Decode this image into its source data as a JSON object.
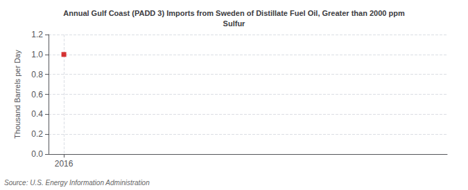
{
  "chart_data": {
    "type": "scatter",
    "title": "Annual Gulf Coast (PADD 3) Imports from Sweden of Distillate Fuel Oil, Greater than 2000 ppm\nSulfur",
    "ylabel": "Thousand Barrels per Day",
    "source": "Source: U.S. Energy Information Administration",
    "x": [
      2016
    ],
    "values": [
      1.0
    ],
    "color": "#cc0000",
    "marker": "square",
    "xlim": [
      2015.4,
      2031
    ],
    "xticks": [
      2016
    ],
    "ylim": [
      0.0,
      1.2
    ],
    "yticks": [
      {
        "value": 0.0,
        "label": "0.0"
      },
      0.2,
      0.4,
      0.6,
      0.8,
      {
        "value": 1.0,
        "label": "1.0"
      },
      1.2
    ],
    "grid": true
  }
}
